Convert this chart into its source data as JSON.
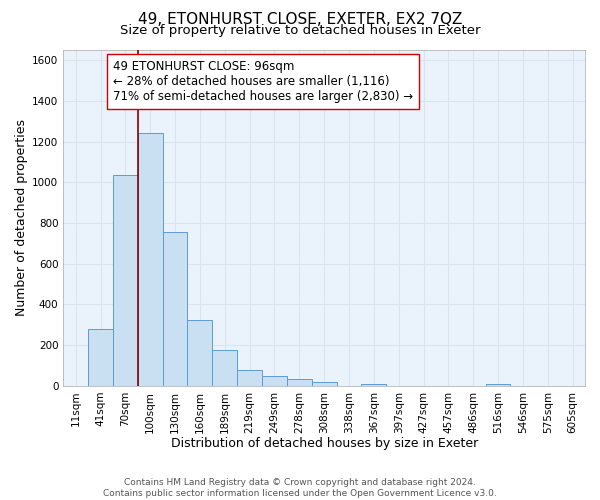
{
  "title": "49, ETONHURST CLOSE, EXETER, EX2 7QZ",
  "subtitle": "Size of property relative to detached houses in Exeter",
  "xlabel": "Distribution of detached houses by size in Exeter",
  "ylabel": "Number of detached properties",
  "bar_labels": [
    "11sqm",
    "41sqm",
    "70sqm",
    "100sqm",
    "130sqm",
    "160sqm",
    "189sqm",
    "219sqm",
    "249sqm",
    "278sqm",
    "308sqm",
    "338sqm",
    "367sqm",
    "397sqm",
    "427sqm",
    "457sqm",
    "486sqm",
    "516sqm",
    "546sqm",
    "575sqm",
    "605sqm"
  ],
  "bar_heights": [
    0,
    280,
    1035,
    1240,
    755,
    325,
    175,
    78,
    50,
    35,
    20,
    0,
    10,
    0,
    0,
    0,
    0,
    10,
    0,
    0,
    0
  ],
  "bar_color": "#c9dff2",
  "bar_edge_color": "#5b9bd5",
  "vline_x": 2.5,
  "vline_color": "#8b0000",
  "annotation_text": "49 ETONHURST CLOSE: 96sqm\n← 28% of detached houses are smaller (1,116)\n71% of semi-detached houses are larger (2,830) →",
  "annotation_box_color": "white",
  "annotation_box_edge": "#cc0000",
  "ylim": [
    0,
    1650
  ],
  "yticks": [
    0,
    200,
    400,
    600,
    800,
    1000,
    1200,
    1400,
    1600
  ],
  "footnote": "Contains HM Land Registry data © Crown copyright and database right 2024.\nContains public sector information licensed under the Open Government Licence v3.0.",
  "title_fontsize": 11,
  "subtitle_fontsize": 9.5,
  "xlabel_fontsize": 9,
  "ylabel_fontsize": 9,
  "tick_fontsize": 7.5,
  "annotation_fontsize": 8.5,
  "footnote_fontsize": 6.5,
  "background_color": "#ffffff",
  "grid_color": "#d8e4f0"
}
